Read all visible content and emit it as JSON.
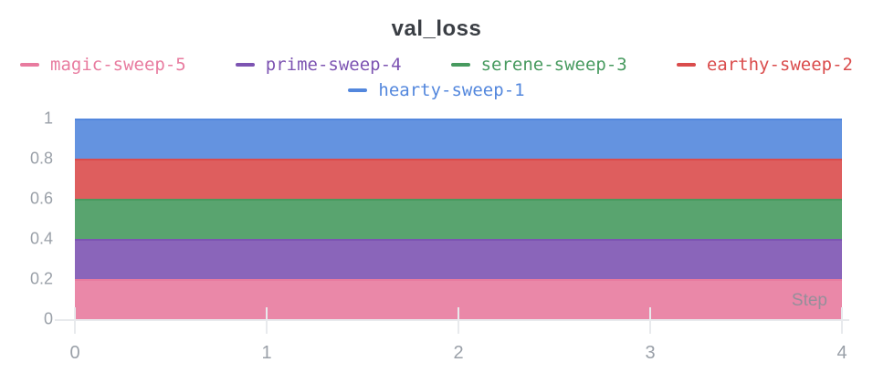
{
  "panel": {
    "title": "val_loss",
    "step_label": "Step"
  },
  "colors": {
    "title_text": "#3a3e44",
    "axis_text": "#9aa0a8",
    "grid_line": "#e8eaed",
    "series": {
      "magic-sweep-5": "#E87B9F",
      "prime-sweep-4": "#7D54B2",
      "serene-sweep-3": "#479A5F",
      "earthy-sweep-2": "#DA4C4C",
      "hearty-sweep-1": "#5387DD"
    }
  },
  "legend": {
    "rows": [
      [
        "magic-sweep-5",
        "prime-sweep-4",
        "serene-sweep-3",
        "earthy-sweep-2"
      ],
      [
        "hearty-sweep-1"
      ]
    ]
  },
  "chart_data": {
    "type": "area",
    "stacked": true,
    "title": "val_loss",
    "xlabel": "Step",
    "ylabel": "",
    "x": [
      0,
      1,
      2,
      3,
      4
    ],
    "x_tick_labels": [
      "0",
      "1",
      "2",
      "3",
      "4"
    ],
    "y_tick_labels": [
      "0",
      "0.2",
      "0.4",
      "0.6",
      "0.8",
      "1"
    ],
    "xlim": [
      0,
      4
    ],
    "ylim": [
      0,
      1
    ],
    "grid": false,
    "legend_position": "top",
    "series": [
      {
        "name": "magic-sweep-5",
        "color": "#E87B9F",
        "values": [
          0.2,
          0.2,
          0.2,
          0.2,
          0.2
        ],
        "band": [
          0.0,
          0.2
        ]
      },
      {
        "name": "prime-sweep-4",
        "color": "#7D54B2",
        "values": [
          0.2,
          0.2,
          0.2,
          0.2,
          0.2
        ],
        "band": [
          0.2,
          0.4
        ]
      },
      {
        "name": "serene-sweep-3",
        "color": "#479A5F",
        "values": [
          0.2,
          0.2,
          0.2,
          0.2,
          0.2
        ],
        "band": [
          0.4,
          0.6
        ]
      },
      {
        "name": "earthy-sweep-2",
        "color": "#DA4C4C",
        "values": [
          0.2,
          0.2,
          0.2,
          0.2,
          0.2
        ],
        "band": [
          0.6,
          0.8
        ]
      },
      {
        "name": "hearty-sweep-1",
        "color": "#5387DD",
        "values": [
          0.2,
          0.2,
          0.2,
          0.2,
          0.2
        ],
        "band": [
          0.8,
          1.0
        ]
      }
    ]
  }
}
